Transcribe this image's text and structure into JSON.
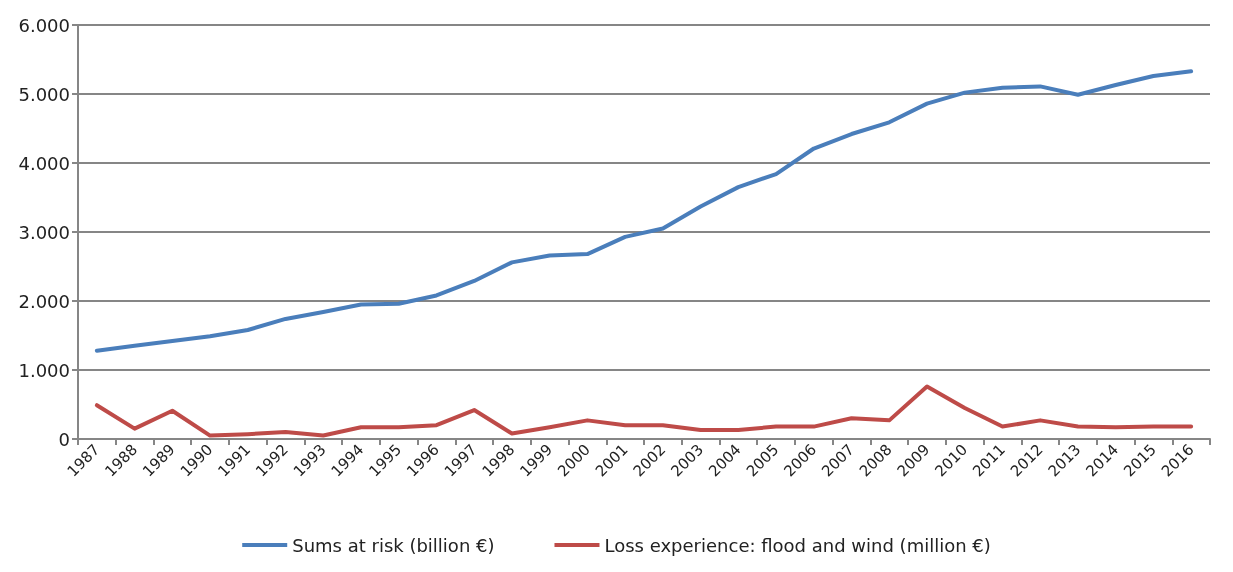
{
  "chart_data": {
    "type": "line",
    "categories": [
      "1987",
      "1988",
      "1989",
      "1990",
      "1991",
      "1992",
      "1993",
      "1994",
      "1995",
      "1996",
      "1997",
      "1998",
      "1999",
      "2000",
      "2001",
      "2002",
      "2003",
      "2004",
      "2005",
      "2006",
      "2007",
      "2008",
      "2009",
      "2010",
      "2011",
      "2012",
      "2013",
      "2014",
      "2015",
      "2016"
    ],
    "series": [
      {
        "name": "Sums at risk (billion €)",
        "color": "#4a7ebb",
        "values": [
          1280,
          1350,
          1420,
          1490,
          1580,
          1740,
          1840,
          1950,
          1960,
          2080,
          2290,
          2560,
          2660,
          2680,
          2930,
          3050,
          3370,
          3650,
          3840,
          4210,
          4420,
          4590,
          4860,
          5020,
          5090,
          5110,
          4990,
          5130,
          5260,
          5330
        ]
      },
      {
        "name": "Loss experience: flood and wind (million €)",
        "color": "#be4b48",
        "values": [
          490,
          150,
          410,
          50,
          70,
          100,
          50,
          170,
          170,
          200,
          420,
          80,
          170,
          270,
          200,
          200,
          130,
          130,
          180,
          180,
          300,
          270,
          760,
          450,
          180,
          270,
          180,
          170,
          180,
          180
        ]
      }
    ],
    "ylim": [
      0,
      6000
    ],
    "yticks": [
      0,
      {
        "value": 1000,
        "label": "1.000"
      },
      {
        "value": 2000,
        "label": "2.000"
      },
      {
        "value": 3000,
        "label": "3.000"
      },
      {
        "value": 4000,
        "label": "4.000"
      },
      {
        "value": 5000,
        "label": "5.000"
      },
      {
        "value": 6000,
        "label": "6.000"
      }
    ],
    "grid": "y",
    "legend": "bottom",
    "marker": "none",
    "line_style": "solid"
  }
}
